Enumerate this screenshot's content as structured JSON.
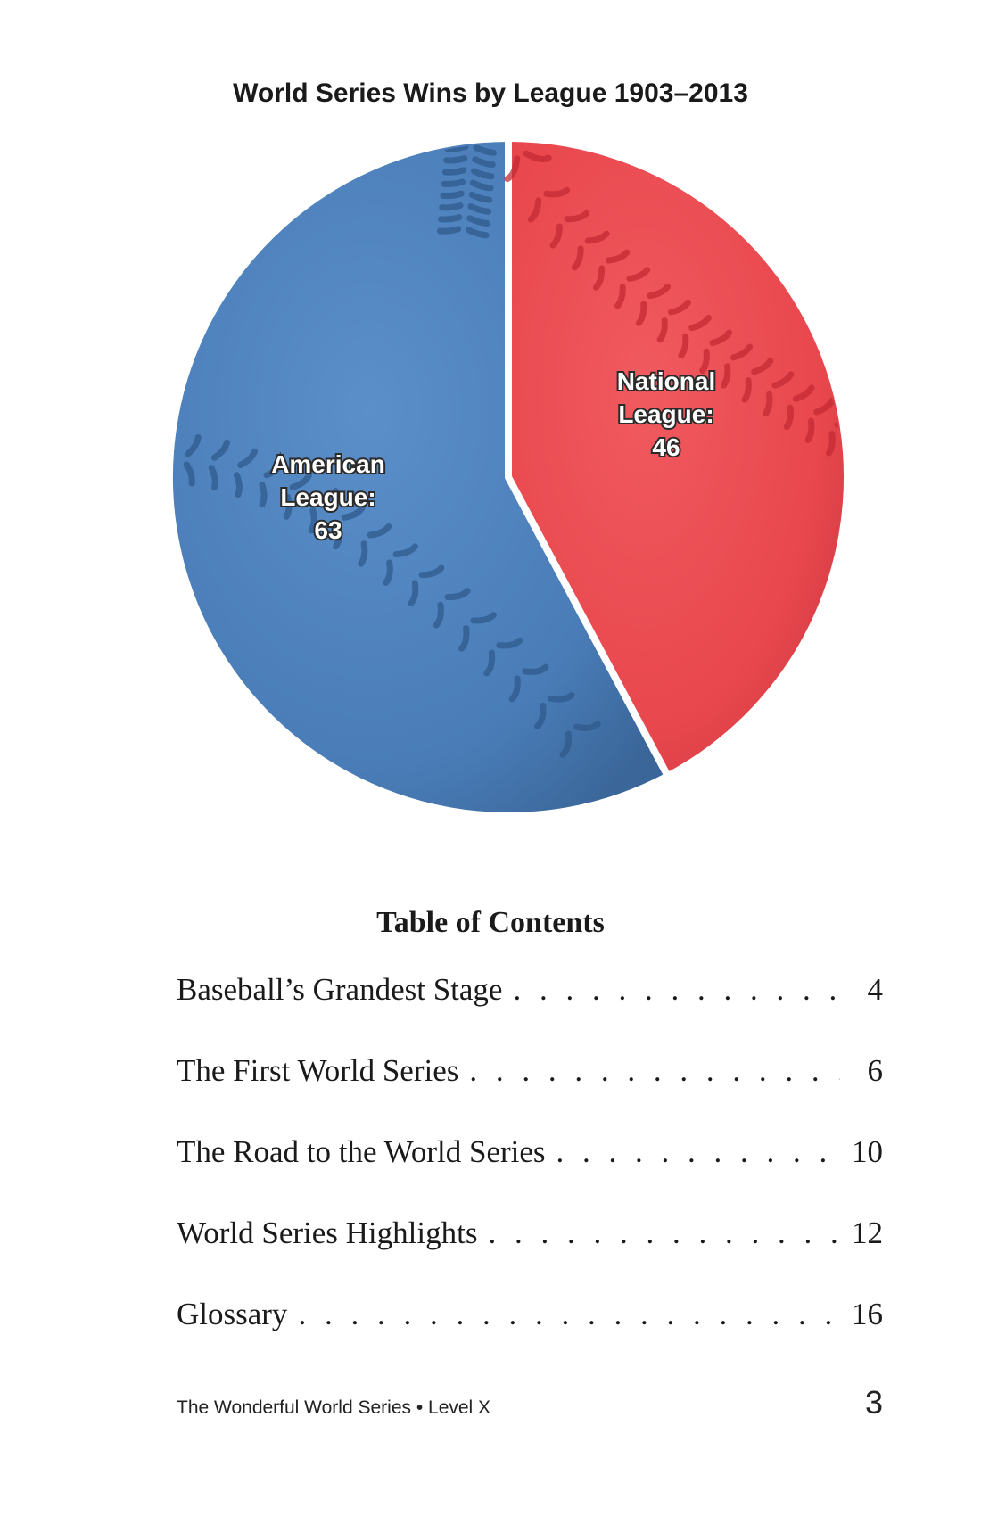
{
  "chart_data": {
    "type": "pie",
    "title": "World Series Wins by League 1903–2013",
    "slices": [
      {
        "name": "American League",
        "label_lines": [
          "American",
          "League:",
          "63"
        ],
        "value": 63,
        "color": "#4a7db8"
      },
      {
        "name": "National League",
        "label_lines": [
          "National",
          "League:",
          "46"
        ],
        "value": 46,
        "color": "#e8474d"
      }
    ]
  },
  "toc": {
    "heading": "Table of Contents",
    "entries": [
      {
        "title": "Baseball’s Grandest Stage",
        "page": "4"
      },
      {
        "title": "The First World Series",
        "page": "6"
      },
      {
        "title": "The Road to the World Series",
        "page": "10"
      },
      {
        "title": "World Series Highlights",
        "page": "12"
      },
      {
        "title": "Glossary",
        "page": "16"
      }
    ]
  },
  "footer": {
    "book_title": "The Wonderful World Series • Level X",
    "page_number": "3"
  }
}
